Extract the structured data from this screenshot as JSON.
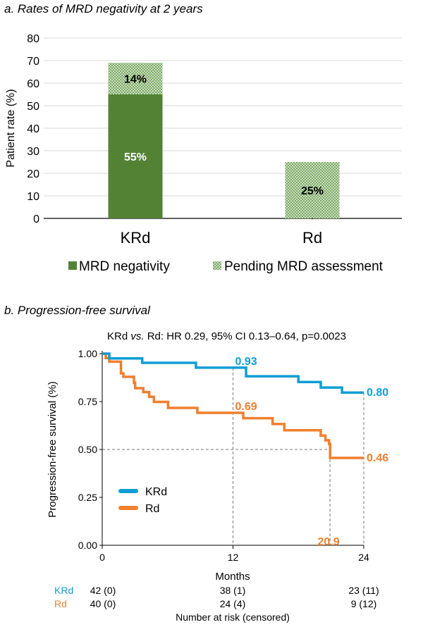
{
  "chart_data": [
    {
      "type": "bar",
      "stacked": true,
      "title": "a. Rates of MRD negativity at 2 years",
      "ylabel": "Patient rate (%)",
      "xlabel": "",
      "ylim": [
        0,
        80
      ],
      "yticks": [
        "0",
        "10",
        "20",
        "30",
        "40",
        "50",
        "60",
        "70",
        "80"
      ],
      "grid": true,
      "legend_position": "bottom",
      "categories": [
        "KRd",
        "Rd"
      ],
      "series": [
        {
          "name": "MRD negativity",
          "values": [
            55,
            0
          ],
          "labels": [
            "55%",
            "0"
          ],
          "color": "#548235",
          "pattern": "solid"
        },
        {
          "name": "Pending MRD assessment",
          "values": [
            14,
            25
          ],
          "labels": [
            "14%",
            "25%"
          ],
          "color": "#9dc183",
          "pattern": "checker"
        }
      ]
    },
    {
      "type": "line",
      "subtype": "kaplan-meier",
      "title": "b. Progression-free survival",
      "subtitle": {
        "prefix": "KRd ",
        "vs": "vs.",
        "rest": " Rd: HR 0.29, 95% CI 0.13–0.64, p=0.0023"
      },
      "xlabel": "Months",
      "ylabel": "Progression-free survival (%)",
      "xlim": [
        0,
        24
      ],
      "ylim": [
        0,
        1
      ],
      "xticks": [
        "0",
        "12",
        "24"
      ],
      "yticks": [
        "0.00",
        "0.25",
        "0.50",
        "0.75",
        "1.00"
      ],
      "legend_position": "lower-left",
      "series": [
        {
          "name": "KRd",
          "color": "#0e9ed4",
          "steps": [
            [
              0,
              1.0
            ],
            [
              0.65,
              0.975
            ],
            [
              3.67,
              0.952
            ],
            [
              8.6,
              0.927
            ],
            [
              13.2,
              0.882
            ],
            [
              18.0,
              0.852
            ],
            [
              20.05,
              0.823
            ],
            [
              22.0,
              0.797
            ],
            [
              24,
              0.797
            ]
          ]
        },
        {
          "name": "Rd",
          "color": "#ef7f2e",
          "steps": [
            [
              0,
              1.0
            ],
            [
              0.32,
              0.977
            ],
            [
              0.65,
              0.958
            ],
            [
              1.72,
              0.897
            ],
            [
              1.94,
              0.879
            ],
            [
              2.91,
              0.848
            ],
            [
              3.02,
              0.82
            ],
            [
              3.77,
              0.799
            ],
            [
              4.31,
              0.775
            ],
            [
              4.74,
              0.748
            ],
            [
              6.04,
              0.717
            ],
            [
              8.73,
              0.691
            ],
            [
              12.94,
              0.663
            ],
            [
              15.63,
              0.633
            ],
            [
              16.71,
              0.6
            ],
            [
              20.05,
              0.572
            ],
            [
              20.48,
              0.548
            ],
            [
              20.81,
              0.529
            ],
            [
              20.91,
              0.456
            ],
            [
              24,
              0.456
            ]
          ]
        }
      ],
      "annotations": [
        {
          "text": "0.93",
          "x": 12,
          "y": 0.927,
          "series": "KRd"
        },
        {
          "text": "0.80",
          "x": 24,
          "y": 0.797,
          "series": "KRd"
        },
        {
          "text": "0.69",
          "x": 12,
          "y": 0.691,
          "series": "Rd"
        },
        {
          "text": "0.46",
          "x": 24,
          "y": 0.456,
          "series": "Rd"
        },
        {
          "text": "20.9",
          "x": 20.9,
          "y": 0,
          "series": "Rd"
        }
      ],
      "reference_lines": {
        "median_y": 0.5,
        "vertical_x": [
          12,
          20.9,
          24
        ]
      },
      "risk_table": {
        "title": "Number at risk (censored)",
        "rows": [
          {
            "label": "KRd",
            "values": [
              "42 (0)",
              "38 (1)",
              "23 (11)"
            ]
          },
          {
            "label": "Rd",
            "values": [
              "40 (0)",
              "24 (4)",
              "9 (12)"
            ]
          }
        ]
      }
    }
  ]
}
